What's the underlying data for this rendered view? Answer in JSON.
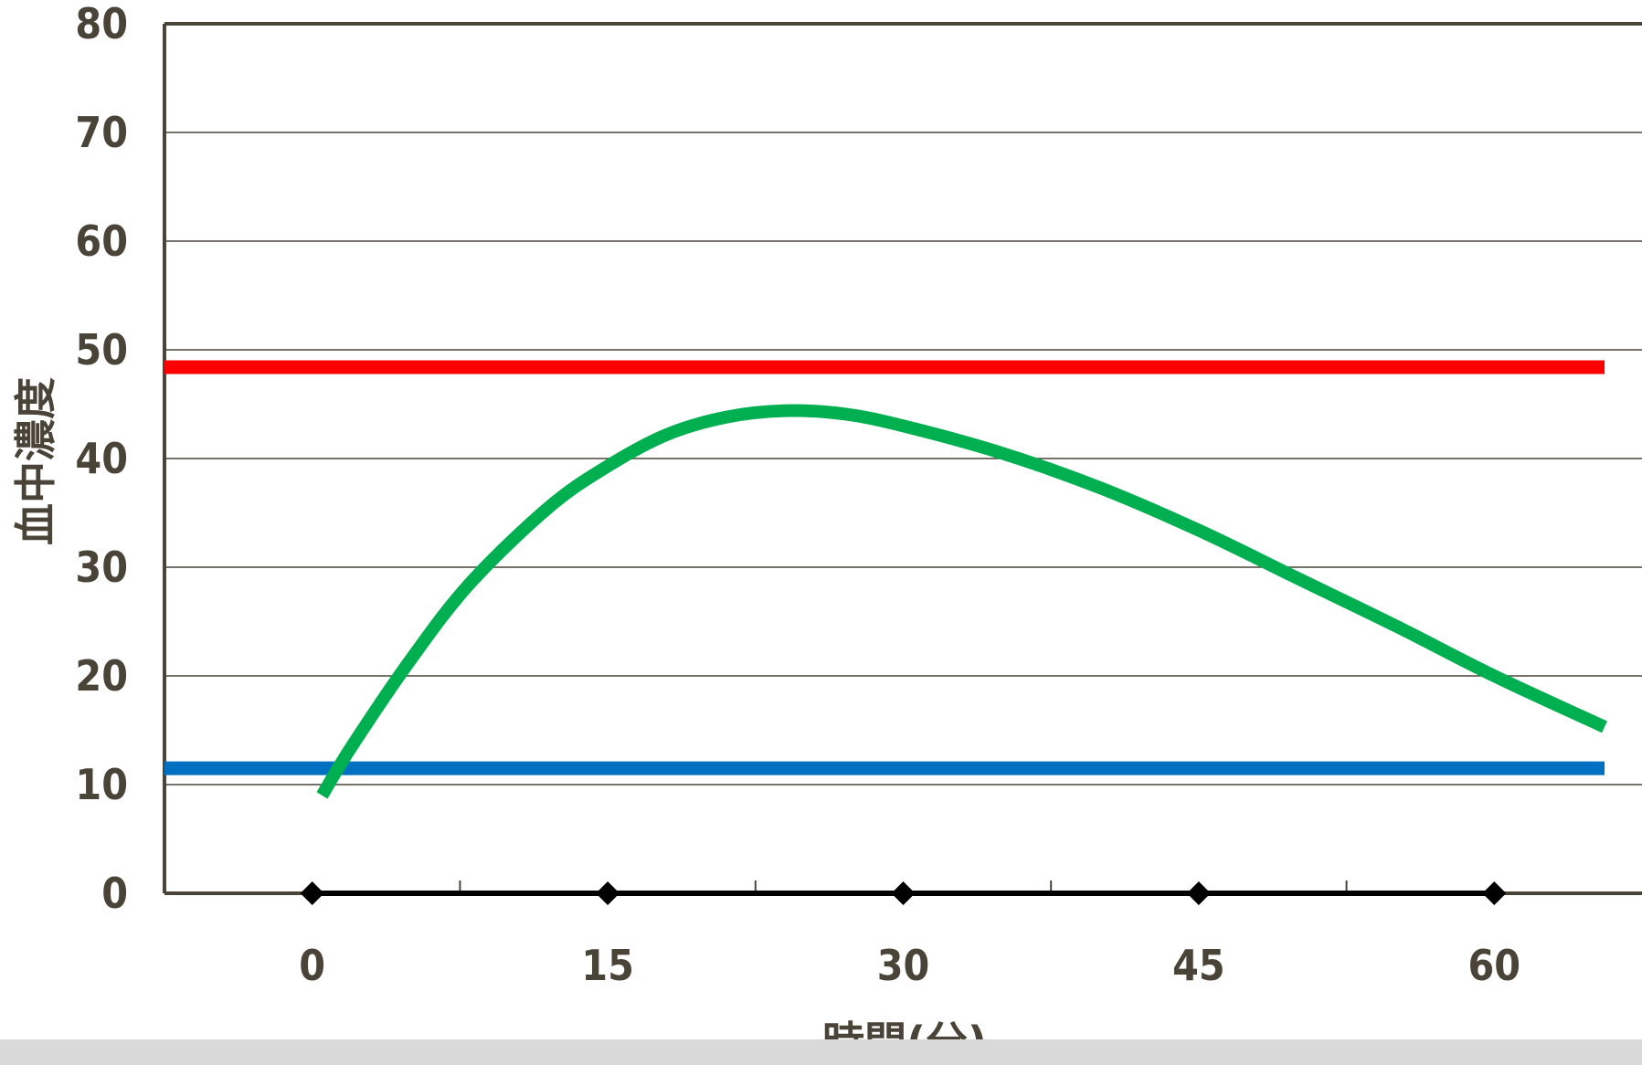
{
  "chart_data": {
    "type": "line",
    "xlabel": "時間(分)",
    "ylabel": "血中濃度",
    "x_ticks": [
      0,
      15,
      30,
      45,
      60
    ],
    "y_ticks": [
      0,
      10,
      20,
      30,
      40,
      50,
      60,
      70,
      80
    ],
    "xlim": [
      -7.5,
      67.5
    ],
    "ylim": [
      0,
      80
    ],
    "grid": true,
    "colors": {
      "axis": "#4a4338",
      "grid": "#4a4338",
      "baseline": "#000000",
      "upper_line": "#ff0000",
      "lower_line": "#0070c0",
      "curve": "#00b050"
    },
    "series": [
      {
        "kind": "reference-line",
        "color": "#ff0000",
        "x": [
          -7.5,
          65.6
        ],
        "y": [
          48.4,
          48.4
        ]
      },
      {
        "kind": "reference-line",
        "color": "#0070c0",
        "x": [
          -7.5,
          65.6
        ],
        "y": [
          11.5,
          11.5
        ]
      },
      {
        "kind": "curve",
        "color": "#00b050",
        "x": [
          0.5,
          2,
          5,
          8,
          12,
          15,
          18,
          21,
          24,
          27,
          30,
          35,
          40,
          45,
          50,
          55,
          60,
          65.6
        ],
        "y": [
          9.0,
          13.5,
          21.5,
          28.5,
          35.5,
          39.3,
          42.2,
          43.8,
          44.4,
          44.1,
          43.0,
          40.5,
          37.3,
          33.4,
          29.0,
          24.6,
          20.0,
          15.3
        ]
      },
      {
        "kind": "baseline-markers",
        "color": "#000000",
        "x": [
          0,
          15,
          30,
          45,
          60
        ],
        "y": [
          0,
          0,
          0,
          0,
          0
        ]
      }
    ]
  }
}
